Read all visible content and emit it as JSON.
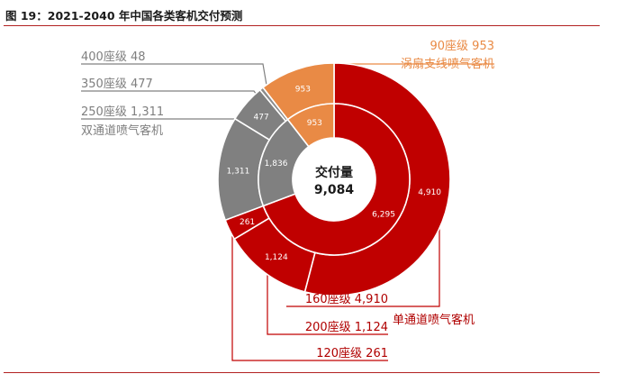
{
  "header": {
    "title": "图 19：2021-2040 年中国各类客机交付预测"
  },
  "chart_data": {
    "type": "donut",
    "center": {
      "label": "交付量",
      "value": "9,084",
      "total": 9084
    },
    "colors": {
      "single_aisle": "#c00000",
      "twin_aisle": "#808080",
      "turboprop": "#e98a45",
      "regional_jet": "#8c8c8c",
      "leader_red": "#c00000",
      "leader_gray": "#808080",
      "leader_orange": "#e98a45",
      "label_gray": "#7f7f7f",
      "label_red": "#b00000",
      "label_orange": "#e98a45"
    },
    "inner_ring": [
      {
        "category": "单通道喷气客机",
        "value": 6295,
        "label": "6,295",
        "color_key": "single_aisle"
      },
      {
        "category": "双通道喷气客机",
        "value": 1836,
        "label": "1,836",
        "color_key": "twin_aisle"
      },
      {
        "category": "涡扇支线喷气客机",
        "value": 953,
        "label": "953",
        "color_key": "turboprop"
      }
    ],
    "outer_ring": [
      {
        "seat_class": "160座级",
        "value": 4910,
        "label": "4,910",
        "color_key": "single_aisle"
      },
      {
        "seat_class": "200座级",
        "value": 1124,
        "label": "1,124",
        "color_key": "single_aisle"
      },
      {
        "seat_class": "120座级",
        "value": 261,
        "label": "261",
        "color_key": "single_aisle"
      },
      {
        "seat_class": "250座级",
        "value": 1311,
        "label": "1,311",
        "color_key": "twin_aisle"
      },
      {
        "seat_class": "350座级",
        "value": 477,
        "label": "477",
        "color_key": "twin_aisle"
      },
      {
        "seat_class": "400座级",
        "value": 48,
        "label": "",
        "color_key": "regional_jet"
      },
      {
        "seat_class": "90座级",
        "value": 953,
        "label": "953",
        "color_key": "turboprop"
      }
    ],
    "annotations": [
      {
        "text": "400座级 48",
        "segment": 5,
        "side": "left",
        "color_key": "label_gray"
      },
      {
        "text": "350座级 477",
        "segment": 4,
        "side": "left",
        "color_key": "label_gray"
      },
      {
        "text": "250座级 1,311",
        "segment": 3,
        "side": "left",
        "color_key": "label_gray"
      },
      {
        "text": "双通道喷气客机",
        "group": "twin",
        "side": "left",
        "color_key": "label_gray"
      },
      {
        "text": "90座级 953",
        "segment": 6,
        "side": "right",
        "color_key": "label_orange"
      },
      {
        "text": "涡扇支线喷气客机",
        "group": "turboprop",
        "side": "right",
        "color_key": "label_orange"
      },
      {
        "text": "160座级 4,910",
        "segment": 0,
        "side": "bottom",
        "color_key": "label_red"
      },
      {
        "text": "200座级 1,124",
        "segment": 1,
        "side": "bottom",
        "color_key": "label_red"
      },
      {
        "text": "单通道喷气客机",
        "group": "single",
        "side": "bottom",
        "color_key": "label_red"
      },
      {
        "text": "120座级 261",
        "segment": 2,
        "side": "bottom",
        "color_key": "label_red"
      }
    ]
  }
}
